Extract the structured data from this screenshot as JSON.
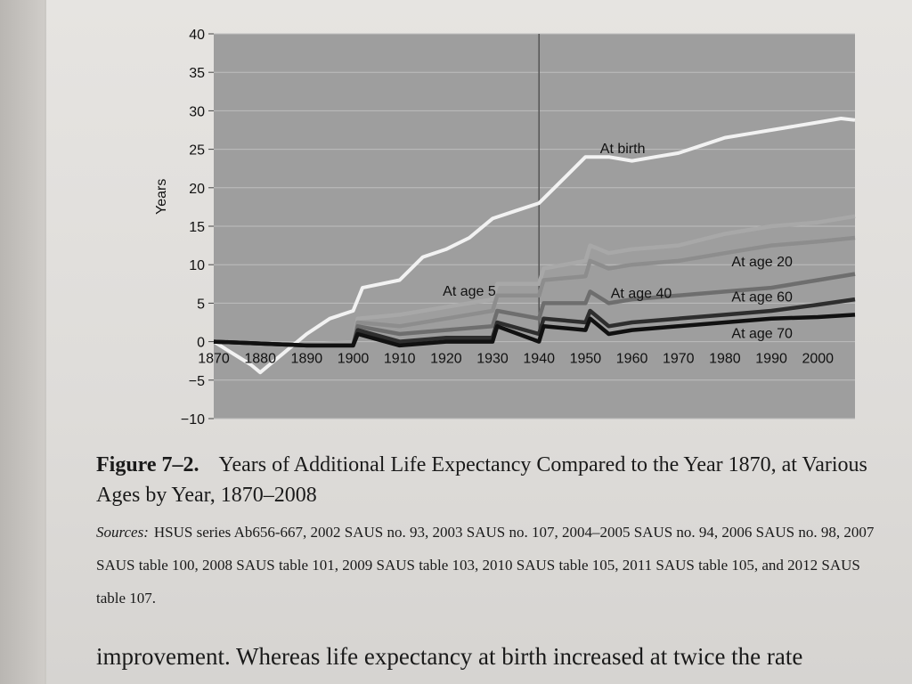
{
  "chart_data": {
    "type": "line",
    "title": "",
    "xlabel": "",
    "ylabel": "Years",
    "xlim": [
      1870,
      2008
    ],
    "ylim": [
      -10,
      40
    ],
    "grid": true,
    "x_ticks": [
      "1870",
      "1880",
      "1890",
      "1900",
      "1910",
      "1920",
      "1930",
      "1940",
      "1950",
      "1960",
      "1970",
      "1980",
      "1990",
      "2000"
    ],
    "y_ticks": [
      "40",
      "35",
      "30",
      "25",
      "20",
      "15",
      "10",
      "5",
      "0",
      "−5",
      "−10"
    ],
    "vertical_marker_x": 1940,
    "series": [
      {
        "name": "At birth",
        "color": "#f2f2f2",
        "x": [
          1870,
          1878,
          1880,
          1882,
          1885,
          1890,
          1895,
          1900,
          1902,
          1910,
          1915,
          1920,
          1925,
          1930,
          1935,
          1940,
          1945,
          1950,
          1955,
          1960,
          1965,
          1970,
          1975,
          1980,
          1985,
          1990,
          1995,
          2000,
          2005,
          2008
        ],
        "y": [
          0,
          -3,
          -4,
          -3,
          -1.5,
          1,
          3,
          4,
          7,
          8,
          11,
          12,
          13.5,
          16,
          17,
          18,
          21,
          24,
          24,
          23.5,
          24,
          24.5,
          25.5,
          26.5,
          27,
          27.5,
          28,
          28.5,
          29,
          28.8
        ]
      },
      {
        "name": "At age 5",
        "color": "#a8a8a8",
        "x": [
          1870,
          1890,
          1900,
          1901,
          1910,
          1920,
          1930,
          1931,
          1940,
          1941,
          1950,
          1951,
          1955,
          1960,
          1970,
          1980,
          1990,
          2000,
          2008
        ],
        "y": [
          0,
          -0.5,
          0,
          3,
          3.5,
          4.5,
          5.5,
          7.5,
          7.5,
          9.5,
          10.5,
          12.5,
          11.5,
          12,
          12.5,
          14,
          15,
          15.5,
          16.3
        ]
      },
      {
        "name": "At age 20",
        "color": "#8d8d8d",
        "x": [
          1870,
          1890,
          1900,
          1901,
          1910,
          1920,
          1930,
          1931,
          1940,
          1941,
          1950,
          1951,
          1955,
          1960,
          1970,
          1980,
          1990,
          2000,
          2008
        ],
        "y": [
          0,
          -0.5,
          -0.5,
          2.5,
          2,
          3,
          4,
          6,
          6,
          8,
          8.5,
          10.5,
          9.5,
          10,
          10.5,
          11.5,
          12.5,
          13,
          13.5
        ]
      },
      {
        "name": "At age 40",
        "color": "#6e6e6e",
        "x": [
          1870,
          1890,
          1900,
          1901,
          1910,
          1920,
          1930,
          1931,
          1940,
          1941,
          1950,
          1951,
          1955,
          1960,
          1970,
          1980,
          1990,
          2000,
          2008
        ],
        "y": [
          0,
          -0.5,
          -0.5,
          2,
          1,
          1.5,
          2,
          4,
          3,
          5,
          5,
          6.5,
          5,
          5.5,
          6,
          6.5,
          7,
          8,
          8.8
        ]
      },
      {
        "name": "At age 60",
        "color": "#2e2e2e",
        "x": [
          1870,
          1890,
          1900,
          1901,
          1910,
          1920,
          1930,
          1931,
          1940,
          1941,
          1950,
          1951,
          1955,
          1960,
          1970,
          1980,
          1990,
          2000,
          2008
        ],
        "y": [
          0,
          -0.5,
          -0.5,
          1.5,
          0,
          0.5,
          0.5,
          2.5,
          1,
          3,
          2.5,
          4,
          2,
          2.5,
          3,
          3.5,
          4,
          4.8,
          5.5
        ]
      },
      {
        "name": "At age 70",
        "color": "#111111",
        "x": [
          1870,
          1890,
          1900,
          1901,
          1910,
          1920,
          1930,
          1931,
          1940,
          1941,
          1950,
          1951,
          1955,
          1960,
          1970,
          1980,
          1990,
          2000,
          2008
        ],
        "y": [
          0,
          -0.5,
          -0.5,
          1,
          -0.5,
          0,
          0,
          2,
          0,
          2,
          1.5,
          3,
          1,
          1.5,
          2,
          2.5,
          3,
          3.2,
          3.5
        ]
      }
    ],
    "annotations": [
      {
        "text": "At birth",
        "x": 1958,
        "y": 24.5
      },
      {
        "text": "At age 5",
        "x": 1925,
        "y": 6
      },
      {
        "text": "At age 20",
        "x": 1988,
        "y": 9.8
      },
      {
        "text": "At age 40",
        "x": 1962,
        "y": 5.7
      },
      {
        "text": "At age 60",
        "x": 1988,
        "y": 5.2
      },
      {
        "text": "At age 70",
        "x": 1988,
        "y": 0.5
      }
    ]
  },
  "caption": {
    "figure_number": "Figure 7–2.",
    "title": "Years of Additional Life Expectancy Compared to the Year 1870, at Various Ages by Year, 1870–2008",
    "sources_label": "Sources:",
    "sources_text": "HSUS series Ab656-667, 2002 SAUS no. 93, 2003 SAUS no. 107, 2004–2005 SAUS no. 94, 2006 SAUS no. 98, 2007 SAUS table 100, 2008 SAUS table 101, 2009 SAUS table 103, 2010 SAUS table 105, 2011 SAUS table 105, and 2012 SAUS table 107."
  },
  "body_text": "improvement. Whereas life expectancy at birth increased at twice the rate"
}
